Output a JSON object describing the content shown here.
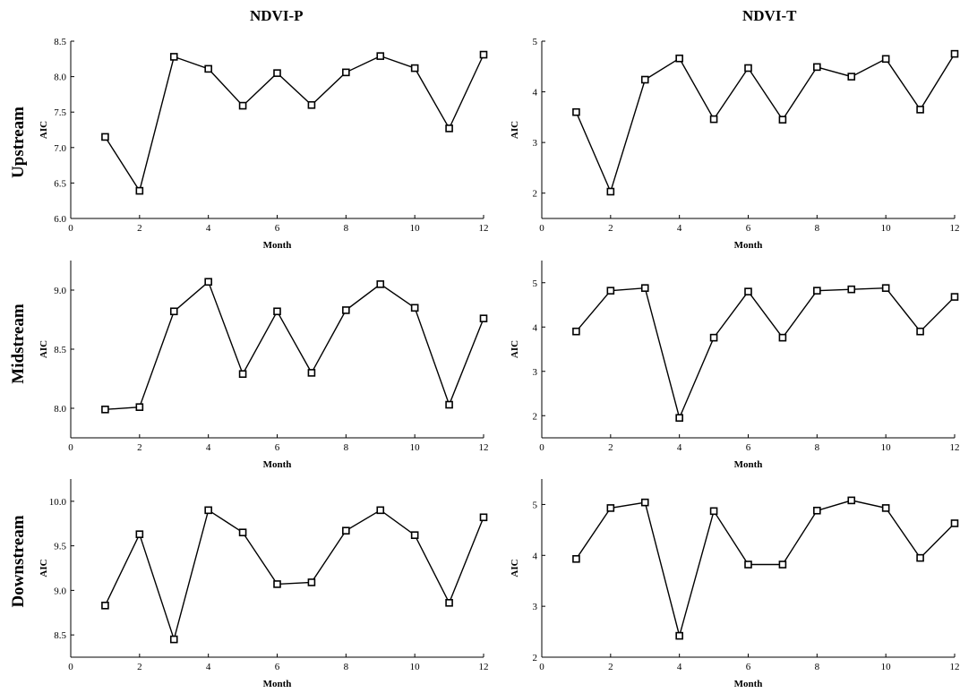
{
  "column_titles": [
    "NDVI-P",
    "NDVI-T"
  ],
  "row_titles": [
    "Upstream",
    "Midstream",
    "Downstream"
  ],
  "chart_data": [
    {
      "type": "line",
      "row": "Upstream",
      "column": "NDVI-P",
      "xlabel": "Month",
      "ylabel": "AIC",
      "xlim": [
        0,
        12
      ],
      "ylim": [
        6.0,
        8.5
      ],
      "xticks": [
        0,
        2,
        4,
        6,
        8,
        10,
        12
      ],
      "yticks": [
        6.0,
        6.5,
        7.0,
        7.5,
        8.0,
        8.5
      ],
      "ytick_decimals": 1,
      "x": [
        1,
        2,
        3,
        4,
        5,
        6,
        7,
        8,
        9,
        10,
        11,
        12
      ],
      "values": [
        7.15,
        6.39,
        8.28,
        8.11,
        7.59,
        8.05,
        7.6,
        8.06,
        8.29,
        8.12,
        7.27,
        8.31
      ]
    },
    {
      "type": "line",
      "row": "Upstream",
      "column": "NDVI-T",
      "xlabel": "Month",
      "ylabel": "AIC",
      "xlim": [
        0,
        12
      ],
      "ylim": [
        1.5,
        5.0
      ],
      "xticks": [
        0,
        2,
        4,
        6,
        8,
        10,
        12
      ],
      "yticks": [
        2,
        3,
        4,
        5
      ],
      "ytick_decimals": 0,
      "x": [
        1,
        2,
        3,
        4,
        5,
        6,
        7,
        8,
        9,
        10,
        11,
        12
      ],
      "values": [
        3.6,
        2.03,
        4.24,
        4.66,
        3.46,
        4.47,
        3.45,
        4.49,
        4.3,
        4.65,
        3.65,
        4.75
      ]
    },
    {
      "type": "line",
      "row": "Midstream",
      "column": "NDVI-P",
      "xlabel": "Month",
      "ylabel": "AIC",
      "xlim": [
        0,
        12
      ],
      "ylim": [
        7.75,
        9.25
      ],
      "xticks": [
        0,
        2,
        4,
        6,
        8,
        10,
        12
      ],
      "yticks": [
        8.0,
        8.5,
        9.0
      ],
      "ytick_decimals": 1,
      "x": [
        1,
        2,
        3,
        4,
        5,
        6,
        7,
        8,
        9,
        10,
        11,
        12
      ],
      "values": [
        7.99,
        8.01,
        8.82,
        9.07,
        8.29,
        8.82,
        8.3,
        8.83,
        9.05,
        8.85,
        8.03,
        8.76
      ]
    },
    {
      "type": "line",
      "row": "Midstream",
      "column": "NDVI-T",
      "xlabel": "Month",
      "ylabel": "AIC",
      "xlim": [
        0,
        12
      ],
      "ylim": [
        1.5,
        5.5
      ],
      "xticks": [
        0,
        2,
        4,
        6,
        8,
        10,
        12
      ],
      "yticks": [
        2,
        3,
        4,
        5
      ],
      "ytick_decimals": 0,
      "x": [
        1,
        2,
        3,
        4,
        5,
        6,
        7,
        8,
        9,
        10,
        11,
        12
      ],
      "values": [
        3.9,
        4.82,
        4.88,
        1.95,
        3.76,
        4.8,
        3.76,
        4.82,
        4.85,
        4.88,
        3.9,
        4.68
      ]
    },
    {
      "type": "line",
      "row": "Downstream",
      "column": "NDVI-P",
      "xlabel": "Month",
      "ylabel": "AIC",
      "xlim": [
        0,
        12
      ],
      "ylim": [
        8.25,
        10.25
      ],
      "xticks": [
        0,
        2,
        4,
        6,
        8,
        10,
        12
      ],
      "yticks": [
        8.5,
        9.0,
        9.5,
        10.0
      ],
      "ytick_decimals": 1,
      "x": [
        1,
        2,
        3,
        4,
        5,
        6,
        7,
        8,
        9,
        10,
        11,
        12
      ],
      "values": [
        8.83,
        9.63,
        8.45,
        9.9,
        9.65,
        9.07,
        9.09,
        9.67,
        9.9,
        9.62,
        8.86,
        9.82
      ]
    },
    {
      "type": "line",
      "row": "Downstream",
      "column": "NDVI-T",
      "xlabel": "Month",
      "ylabel": "AIC",
      "xlim": [
        0,
        12
      ],
      "ylim": [
        2.0,
        5.5
      ],
      "xticks": [
        0,
        2,
        4,
        6,
        8,
        10,
        12
      ],
      "yticks": [
        2,
        3,
        4,
        5
      ],
      "ytick_decimals": 0,
      "x": [
        1,
        2,
        3,
        4,
        5,
        6,
        7,
        8,
        9,
        10,
        11,
        12
      ],
      "values": [
        3.93,
        4.93,
        5.04,
        2.42,
        4.87,
        3.82,
        3.82,
        4.88,
        5.08,
        4.93,
        3.95,
        4.63
      ]
    }
  ]
}
